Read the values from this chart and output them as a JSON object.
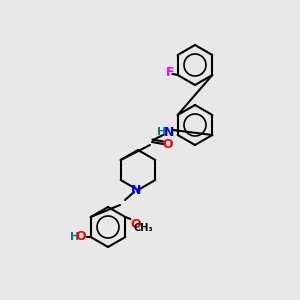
{
  "background_color": "#e8e8e8",
  "bond_color": "#000000",
  "atom_colors": {
    "F": "#ff00ff",
    "N": "#0000ff",
    "O": "#ff0000",
    "H": "#008080",
    "C": "#000000"
  },
  "title": "",
  "figsize": [
    3.0,
    3.0
  ],
  "dpi": 100
}
